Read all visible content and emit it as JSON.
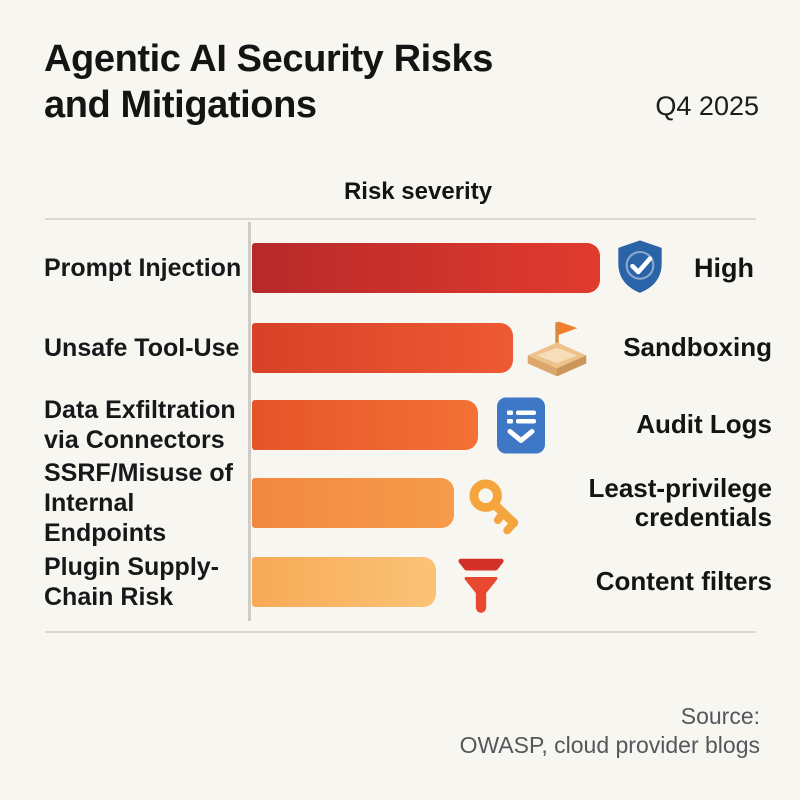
{
  "header": {
    "title_line1": "Agentic AI Security Risks",
    "title_line2": "and Mitigations",
    "period": "Q4 2025"
  },
  "chart": {
    "heading": "Risk severity"
  },
  "chart_data": {
    "type": "bar",
    "orientation": "horizontal",
    "title": "Risk severity",
    "categories": [
      "Prompt Injection",
      "Unsafe Tool-Use",
      "Data Exfiltration via Connectors",
      "SSRF/Misuse of Internal Endpoints",
      "Plugin Supply-Chain Risk"
    ],
    "values": [
      100,
      75,
      65,
      58,
      53
    ],
    "value_unit": "relative severity (no numeric axis shown)",
    "xlim": [
      0,
      100
    ],
    "grid": false,
    "legend": "none",
    "bar_colors": [
      [
        "#b7292a",
        "#e13b2e"
      ],
      [
        "#d84127",
        "#ed5a33"
      ],
      [
        "#e55429",
        "#f37136"
      ],
      [
        "#f18840",
        "#f69b4b"
      ],
      [
        "#f7aa56",
        "#fbc377"
      ]
    ],
    "annotations": [
      {
        "category": "Prompt Injection",
        "label": "High",
        "icon": "shield-check"
      },
      {
        "category": "Unsafe Tool-Use",
        "label": "Sandboxing",
        "icon": "sandbox-flag"
      },
      {
        "category": "Data Exfiltration via Connectors",
        "label": "Audit Logs",
        "icon": "audit-log"
      },
      {
        "category": "SSRF/Misuse of Internal Endpoints",
        "label": "Least-privilege credentials",
        "icon": "key"
      },
      {
        "category": "Plugin Supply-Chain Risk",
        "label": "Content filters",
        "icon": "funnel"
      }
    ]
  },
  "rows": [
    {
      "risk": "Prompt Injection",
      "mitigation": "High"
    },
    {
      "risk": "Unsafe Tool-Use",
      "mitigation": "Sandboxing"
    },
    {
      "risk": "Data Exfiltration\nvia Connectors",
      "mitigation": "Audit Logs"
    },
    {
      "risk": "SSRF/Misuse of\nInternal Endpoints",
      "mitigation": "Least-privilege\ncredentials"
    },
    {
      "risk": "Plugin Supply-\nChain Risk",
      "mitigation": "Content filters"
    }
  ],
  "footer": {
    "source_label": "Source:",
    "source_value": "OWASP, cloud provider blogs"
  },
  "colors": {
    "background": "#f8f6f1",
    "text": "#141414",
    "divider": "#ddd9d2",
    "axis_line": "#cfccc5",
    "source_text": "#56575c",
    "shield_icon": "#2a63a8",
    "audit_icon": "#3e77c6",
    "key_icon": "#f5a53e",
    "funnel_icon_top": "#d33029",
    "funnel_icon_body": "#e94830",
    "sandbox_rim": "#eec28b",
    "sandbox_sand": "#f7debb",
    "sandbox_flag": "#f07e2c"
  }
}
